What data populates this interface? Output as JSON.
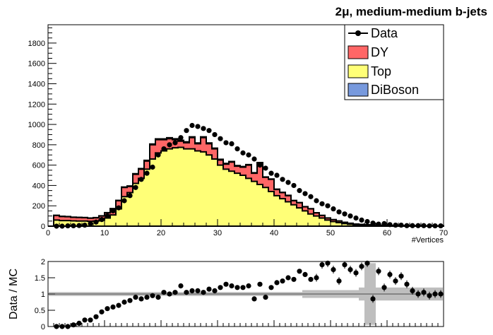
{
  "chart_data": [
    {
      "type": "bar",
      "subtype": "stacked-step-histogram-with-data-points",
      "title": "2μ, medium-medium b-jets",
      "xlabel": "#Vertices",
      "ylabel": "",
      "xlim": [
        0,
        70
      ],
      "ylim": [
        0,
        1980
      ],
      "x_ticks": [
        0,
        10,
        20,
        30,
        40,
        50,
        60,
        70
      ],
      "y_ticks": [
        0,
        200,
        400,
        600,
        800,
        1000,
        1200,
        1400,
        1600,
        1800
      ],
      "legend_position": "top-right",
      "bin_width": 1,
      "bin_edges_start": 0,
      "colors": {
        "DY": "#ff6666",
        "Top": "#ffff77",
        "DiBoson": "#7799dd",
        "Data": "#000000"
      },
      "legend": [
        "Data",
        "DY",
        "Top",
        "DiBoson"
      ],
      "series": [
        {
          "name": "Top",
          "values": [
            0,
            60,
            55,
            55,
            52,
            50,
            50,
            48,
            50,
            60,
            80,
            110,
            170,
            290,
            330,
            420,
            470,
            560,
            660,
            720,
            740,
            760,
            770,
            775,
            760,
            760,
            740,
            730,
            700,
            660,
            600,
            560,
            540,
            520,
            500,
            470,
            440,
            410,
            380,
            340,
            300,
            270,
            240,
            210,
            180,
            150,
            120,
            100,
            80,
            60,
            45,
            35,
            25,
            18,
            12,
            10,
            8,
            6,
            5,
            4,
            3,
            3,
            2,
            2,
            2,
            1,
            1,
            1,
            1,
            1
          ]
        },
        {
          "name": "DY",
          "values": [
            0,
            45,
            40,
            38,
            35,
            35,
            33,
            30,
            32,
            40,
            50,
            60,
            80,
            90,
            60,
            90,
            90,
            80,
            140,
            130,
            110,
            100,
            80,
            60,
            60,
            110,
            70,
            140,
            110,
            100,
            50,
            50,
            90,
            70,
            80,
            130,
            80,
            210,
            100,
            120,
            60,
            60,
            60,
            40,
            50,
            40,
            50,
            30,
            25,
            20,
            18,
            15,
            12,
            10,
            8,
            6,
            5,
            4,
            3,
            3,
            2,
            2,
            2,
            1,
            1,
            1,
            1,
            1,
            1,
            1
          ]
        },
        {
          "name": "DiBoson",
          "values": [
            0,
            2,
            2,
            2,
            2,
            2,
            2,
            2,
            2,
            2,
            3,
            3,
            4,
            5,
            5,
            6,
            6,
            7,
            8,
            8,
            8,
            9,
            9,
            9,
            9,
            8,
            8,
            8,
            8,
            7,
            7,
            7,
            6,
            6,
            6,
            5,
            5,
            5,
            4,
            4,
            4,
            3,
            3,
            3,
            2,
            2,
            2,
            2,
            1,
            1,
            1,
            1,
            1,
            1,
            1,
            1,
            1,
            1,
            1,
            1,
            1,
            1,
            1,
            1,
            1,
            1,
            1,
            1,
            1,
            1
          ]
        },
        {
          "name": "Data",
          "x": [
            1.5,
            2.5,
            3.5,
            4.5,
            5.5,
            6.5,
            7.5,
            8.5,
            9.5,
            10.5,
            11.5,
            12.5,
            13.5,
            14.5,
            15.5,
            16.5,
            17.5,
            18.5,
            19.5,
            20.5,
            21.5,
            22.5,
            23.5,
            24.5,
            25.5,
            26.5,
            27.5,
            28.5,
            29.5,
            30.5,
            31.5,
            32.5,
            33.5,
            34.5,
            35.5,
            36.5,
            37.5,
            38.5,
            39.5,
            40.5,
            41.5,
            42.5,
            43.5,
            44.5,
            45.5,
            46.5,
            47.5,
            48.5,
            49.5,
            50.5,
            51.5,
            52.5,
            53.5,
            54.5,
            55.5,
            56.5,
            57.5,
            58.5,
            59.5,
            60.5,
            61.5,
            62.5,
            63.5,
            64.5,
            65.5,
            66.5,
            67.5,
            68.5,
            69.5
          ],
          "values": [
            0,
            0,
            3,
            4,
            6,
            10,
            25,
            40,
            65,
            100,
            150,
            180,
            250,
            300,
            380,
            460,
            520,
            580,
            700,
            760,
            800,
            820,
            870,
            940,
            990,
            980,
            960,
            940,
            900,
            860,
            820,
            810,
            760,
            720,
            700,
            660,
            600,
            570,
            520,
            500,
            460,
            430,
            400,
            350,
            320,
            290,
            250,
            220,
            200,
            170,
            140,
            120,
            100,
            80,
            60,
            45,
            30,
            20,
            25,
            15,
            10,
            10,
            5,
            5,
            5,
            5,
            3,
            3,
            3
          ]
        }
      ]
    },
    {
      "type": "scatter",
      "subtype": "ratio-panel",
      "ylabel": "Data / MC",
      "xlim": [
        0,
        70
      ],
      "ylim": [
        0,
        2
      ],
      "y_ticks": [
        0,
        0.5,
        1,
        1.5,
        2
      ],
      "x": [
        1.5,
        2.5,
        3.5,
        4.5,
        5.5,
        6.5,
        7.5,
        8.5,
        9.5,
        10.5,
        11.5,
        12.5,
        13.5,
        14.5,
        15.5,
        16.5,
        17.5,
        18.5,
        19.5,
        20.5,
        21.5,
        22.5,
        23.5,
        24.5,
        25.5,
        26.5,
        27.5,
        28.5,
        29.5,
        30.5,
        31.5,
        32.5,
        33.5,
        34.5,
        35.5,
        36.5,
        37.5,
        38.5,
        39.5,
        40.5,
        41.5,
        42.5,
        43.5,
        44.5,
        45.5,
        46.5,
        47.5,
        48.5,
        49.5,
        50.5,
        51.5,
        52.5,
        53.5,
        54.5,
        55.5,
        56.5,
        57.5,
        58.5,
        59.5,
        60.5,
        61.5,
        62.5,
        63.5,
        64.5,
        65.5,
        66.5,
        67.5,
        68.5,
        69.5
      ],
      "values": [
        0,
        0,
        0,
        0.05,
        0.1,
        0.2,
        0.2,
        0.3,
        0.45,
        0.55,
        0.6,
        0.65,
        0.75,
        0.8,
        0.9,
        0.85,
        0.9,
        0.95,
        0.9,
        1.05,
        1.0,
        1.05,
        1.25,
        1.05,
        1.1,
        1.1,
        1.05,
        1.15,
        1.1,
        1.2,
        1.3,
        1.25,
        1.2,
        1.2,
        1.25,
        0.85,
        1.3,
        0.9,
        1.2,
        1.35,
        1.4,
        1.5,
        1.45,
        1.7,
        1.6,
        1.45,
        1.5,
        1.9,
        1.95,
        1.75,
        1.4,
        1.9,
        1.75,
        1.65,
        1.85,
        1.95,
        0.85,
        1.7,
        1.2,
        1.6,
        1.4,
        1.55,
        1.3,
        1.1,
        1.0,
        1.05,
        0.95,
        1.0,
        1.0
      ]
    }
  ]
}
